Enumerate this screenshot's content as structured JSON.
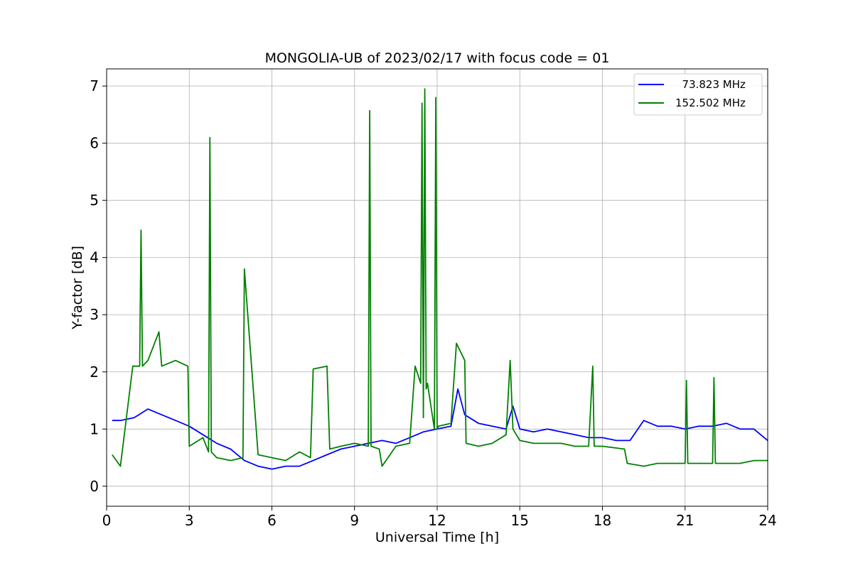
{
  "chart_data": {
    "type": "line",
    "title": "MONGOLIA-UB of 2023/02/17 with focus code = 01",
    "xlabel": "Universal Time [h]",
    "ylabel": "Y-factor [dB]",
    "xlim": [
      0,
      24
    ],
    "ylim": [
      -0.35,
      7.3
    ],
    "xticks": [
      "0",
      "3",
      "6",
      "9",
      "12",
      "15",
      "18",
      "21",
      "24"
    ],
    "yticks": [
      "0",
      "1",
      "2",
      "3",
      "4",
      "5",
      "6",
      "7"
    ],
    "grid": true,
    "legend_position": "top-right",
    "series": [
      {
        "name": "  73.823 MHz",
        "color": "#0000ff",
        "x": [
          0.2,
          0.5,
          1.0,
          1.5,
          2.0,
          2.5,
          3.0,
          3.5,
          4.0,
          4.5,
          5.0,
          5.5,
          6.0,
          6.5,
          7.0,
          7.5,
          8.0,
          8.5,
          9.0,
          9.5,
          10.0,
          10.5,
          11.0,
          11.5,
          12.0,
          12.5,
          12.75,
          13.0,
          13.5,
          14.0,
          14.5,
          14.75,
          15.0,
          15.5,
          16.0,
          16.5,
          17.0,
          17.5,
          18.0,
          18.5,
          19.0,
          19.5,
          20.0,
          20.5,
          21.0,
          21.5,
          22.0,
          22.5,
          23.0,
          23.5,
          24.0
        ],
        "values": [
          1.15,
          1.15,
          1.2,
          1.35,
          1.25,
          1.15,
          1.05,
          0.9,
          0.75,
          0.65,
          0.45,
          0.35,
          0.3,
          0.35,
          0.35,
          0.45,
          0.55,
          0.65,
          0.7,
          0.75,
          0.8,
          0.75,
          0.85,
          0.95,
          1.0,
          1.05,
          1.7,
          1.25,
          1.1,
          1.05,
          1.0,
          1.4,
          1.0,
          0.95,
          1.0,
          0.95,
          0.9,
          0.85,
          0.85,
          0.8,
          0.8,
          1.15,
          1.05,
          1.05,
          1.0,
          1.05,
          1.05,
          1.1,
          1.0,
          1.0,
          0.8
        ]
      },
      {
        "name": "152.502 MHz",
        "color": "#008000",
        "x": [
          0.2,
          0.5,
          0.95,
          1.2,
          1.25,
          1.3,
          1.5,
          1.9,
          2.0,
          2.5,
          2.95,
          3.0,
          3.5,
          3.7,
          3.75,
          3.8,
          4.0,
          4.5,
          4.95,
          5.0,
          5.5,
          6.0,
          6.5,
          7.0,
          7.4,
          7.5,
          8.0,
          8.1,
          8.5,
          9.0,
          9.5,
          9.55,
          9.6,
          9.9,
          10.0,
          10.5,
          11.0,
          11.2,
          11.4,
          11.45,
          11.5,
          11.55,
          11.6,
          11.65,
          11.9,
          11.95,
          12.0,
          12.05,
          12.5,
          12.7,
          13.0,
          13.05,
          13.5,
          14.0,
          14.5,
          14.65,
          14.75,
          15.0,
          15.5,
          16.0,
          16.5,
          17.0,
          17.5,
          17.65,
          17.7,
          18.0,
          18.8,
          18.9,
          19.5,
          20.0,
          20.5,
          21.0,
          21.05,
          21.1,
          21.5,
          22.0,
          22.05,
          22.1,
          22.5,
          23.0,
          23.5,
          24.0
        ],
        "values": [
          0.55,
          0.35,
          2.1,
          2.1,
          4.48,
          2.1,
          2.2,
          2.7,
          2.1,
          2.2,
          2.1,
          0.7,
          0.85,
          0.6,
          6.1,
          0.6,
          0.5,
          0.45,
          0.5,
          3.8,
          0.55,
          0.5,
          0.45,
          0.6,
          0.5,
          2.05,
          2.1,
          0.65,
          0.7,
          0.75,
          0.7,
          6.57,
          0.7,
          0.65,
          0.35,
          0.7,
          0.75,
          2.1,
          1.8,
          6.7,
          1.2,
          6.95,
          1.7,
          1.8,
          1.0,
          6.8,
          1.0,
          1.05,
          1.1,
          2.5,
          2.2,
          0.75,
          0.7,
          0.75,
          0.9,
          2.2,
          1.0,
          0.8,
          0.75,
          0.75,
          0.75,
          0.7,
          0.7,
          2.1,
          0.7,
          0.7,
          0.65,
          0.4,
          0.35,
          0.4,
          0.4,
          0.4,
          1.85,
          0.4,
          0.4,
          0.4,
          1.9,
          0.4,
          0.4,
          0.4,
          0.45,
          0.45
        ]
      }
    ]
  }
}
